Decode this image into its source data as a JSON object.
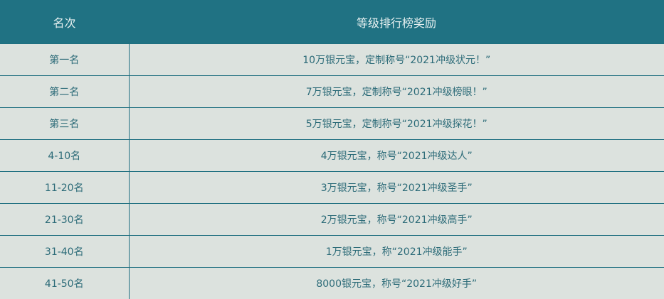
{
  "header": {
    "rank": "名次",
    "reward": "等级排行榜奖励"
  },
  "rows": [
    {
      "rank": "第一名",
      "reward": "10万银元宝，定制称号“2021冲级状元！”"
    },
    {
      "rank": "第二名",
      "reward": "7万银元宝，定制称号“2021冲级榜眼！”"
    },
    {
      "rank": "第三名",
      "reward": "5万银元宝，定制称号“2021冲级探花！”"
    },
    {
      "rank": "4-10名",
      "reward": "4万银元宝，称号“2021冲级达人”"
    },
    {
      "rank": "11-20名",
      "reward": "3万银元宝，称号“2021冲级圣手”"
    },
    {
      "rank": "21-30名",
      "reward": "2万银元宝，称号“2021冲级高手”"
    },
    {
      "rank": "31-40名",
      "reward": "1万银元宝，称“2021冲级能手”"
    },
    {
      "rank": "41-50名",
      "reward": "8000银元宝，称号“2021冲级好手”"
    }
  ],
  "colors": {
    "header_bg": "#207283",
    "body_bg": "#dce2de",
    "text": "#2c6b78"
  }
}
